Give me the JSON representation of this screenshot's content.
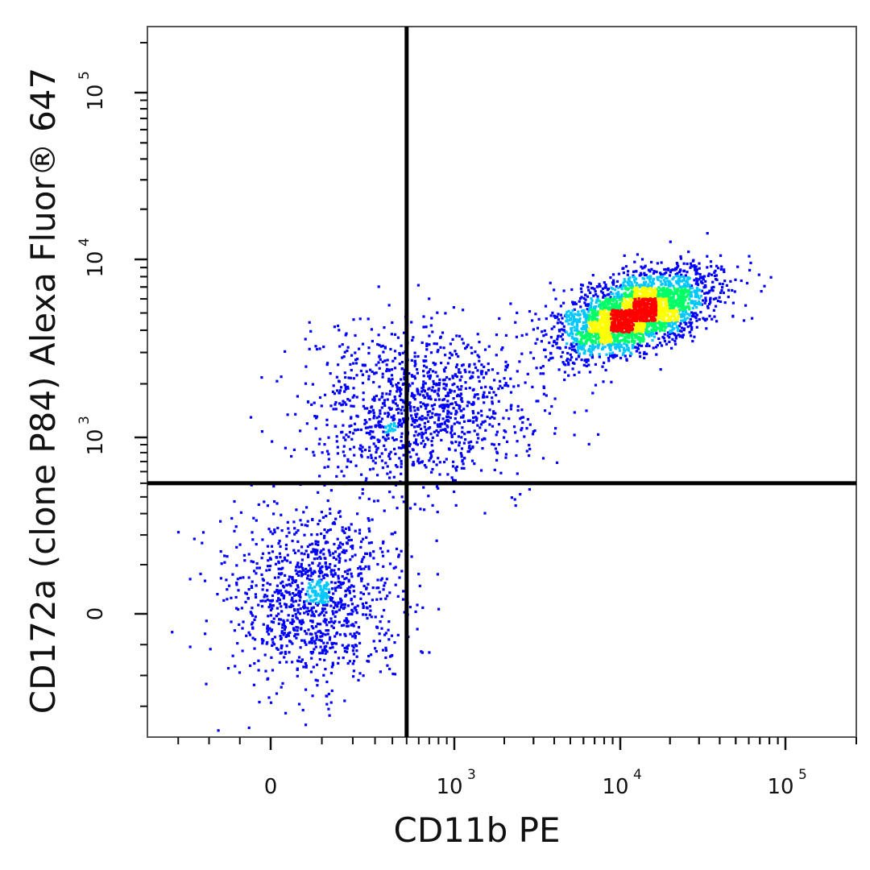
{
  "chart_data": {
    "type": "scatter",
    "subtype": "flow-cytometry-density-dot-plot",
    "xlabel": "CD11b PE",
    "ylabel": "CD172a (clone P84) Alexa Fluor® 647",
    "x_scale": "biexponential",
    "y_scale": "biexponential",
    "xlim": [
      -400,
      200000
    ],
    "ylim": [
      -400,
      250000
    ],
    "x_ticks": [
      {
        "value": 0,
        "base": "0",
        "exp": ""
      },
      {
        "value": 1000,
        "base": "10",
        "exp": "3"
      },
      {
        "value": 10000,
        "base": "10",
        "exp": "4"
      },
      {
        "value": 100000,
        "base": "10",
        "exp": "5"
      }
    ],
    "y_ticks": [
      {
        "value": 0,
        "base": "0",
        "exp": ""
      },
      {
        "value": 1000,
        "base": "10",
        "exp": "3"
      },
      {
        "value": 10000,
        "base": "10",
        "exp": "4"
      },
      {
        "value": 100000,
        "base": "10",
        "exp": "5"
      }
    ],
    "quadrant_gates": {
      "x": 500,
      "y": 500
    },
    "density_colors": [
      "#0000ff",
      "#00c8ff",
      "#00ff66",
      "#ffff00",
      "#ff0000"
    ],
    "populations": [
      {
        "center_x": 80,
        "center_y": 30,
        "spread_x_decades": 0.5,
        "spread_y_decades": 0.5,
        "relative_size": 0.22
      },
      {
        "center_x": 12000,
        "center_y": 5000,
        "spread_x_decades": 0.45,
        "spread_y_decades": 0.22,
        "relative_size": 0.55
      },
      {
        "center_x": 600,
        "center_y": 1500,
        "spread_x_decades": 0.7,
        "spread_y_decades": 0.5,
        "relative_size": 0.23
      }
    ],
    "grid": false,
    "legend": "none"
  }
}
